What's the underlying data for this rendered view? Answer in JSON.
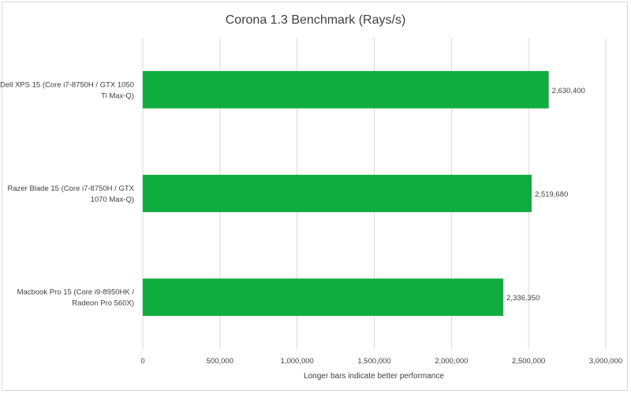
{
  "chart_data": {
    "type": "bar",
    "orientation": "horizontal",
    "title": "Corona 1.3 Benchmark (Rays/s)",
    "xlabel": "Longer bars indicate better performance",
    "ylabel": "",
    "categories": [
      [
        "Dell XPS 15 (Core i7-8750H / GTX 1050",
        "Ti Max-Q)"
      ],
      [
        "Razer Blade 15 (Core i7-8750H / GTX",
        "1070 Max-Q)"
      ],
      [
        "Macbook Pro 15 (Core i9-8950HK /",
        "Radeon Pro 560X)"
      ]
    ],
    "values": [
      2630400,
      2519680,
      2336350
    ],
    "data_labels": [
      "2,630,400",
      "2,519,680",
      "2,336,350"
    ],
    "xlim": [
      0,
      3000000
    ],
    "xticks": [
      0,
      500000,
      1000000,
      1500000,
      2000000,
      2500000,
      3000000
    ],
    "xtick_labels": [
      "0",
      "500,000",
      "1,000,000",
      "1,500,000",
      "2,000,000",
      "2,500,000",
      "3,000,000"
    ],
    "grid": "vertical",
    "legend": "none",
    "bar_color": "#0fac3f"
  }
}
